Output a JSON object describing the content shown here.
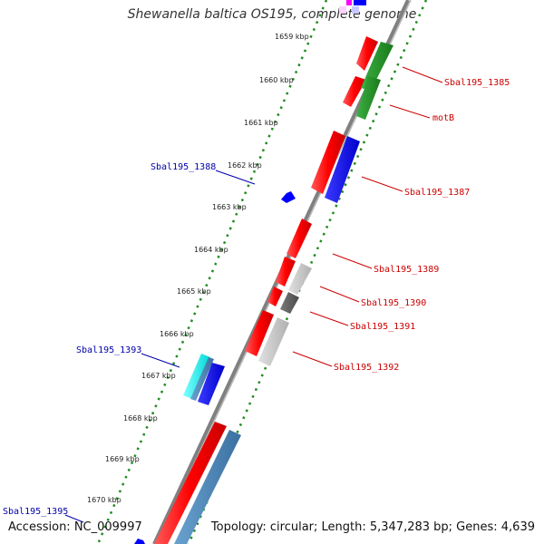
{
  "title": "Shewanella baltica OS195, complete genome",
  "footer": {
    "accession": "Accession: NC_009997",
    "stats": "Topology: circular; Length: 5,347,283 bp; Genes: 4,639"
  },
  "ticks": [
    "1659 kbp",
    "1660 kbp",
    "1661 kbp",
    "1662 kbp",
    "1663 kbp",
    "1664 kbp",
    "1665 kbp",
    "1666 kbp",
    "1667 kbp",
    "1668 kbp",
    "1669 kbp",
    "1670 kbp"
  ],
  "labels_right": [
    "Sbal195_1385",
    "motB",
    "Sbal195_1387",
    "Sbal195_1389",
    "Sbal195_1390",
    "Sbal195_1391",
    "Sbal195_1392"
  ],
  "labels_left": [
    "Sbal195_1388",
    "Sbal195_1393",
    "Sbal195_1395"
  ],
  "colors": {
    "cds_forward": "#ff0000",
    "cds_reverse_blue": "#0000ff",
    "cds_green": "#228b22",
    "cds_gray": "#c8c8c8",
    "cds_dark_gray": "#606060",
    "cds_cyan": "#00ffff",
    "cds_steel": "#4682b4",
    "cds_magenta": "#ff00ff",
    "backbone": "#808080",
    "tick_dots": "#228b22",
    "label_right": "#cc0000",
    "label_left": "#0000aa"
  }
}
